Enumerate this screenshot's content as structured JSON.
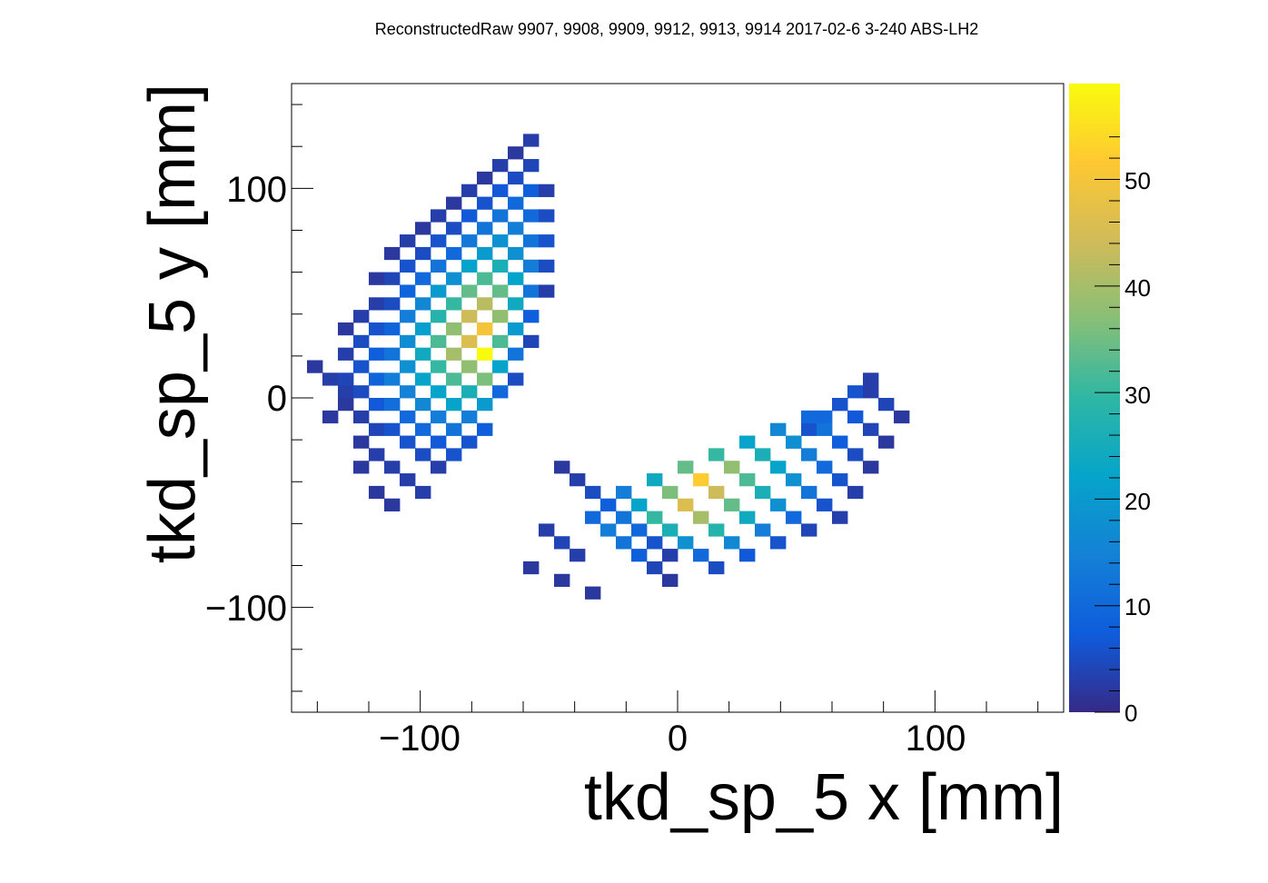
{
  "chart_data": {
    "type": "heatmap",
    "title": "ReconstructedRaw 9907, 9908, 9909, 9912, 9913, 9914 2017-02-6 3-240 ABS-LH2",
    "xlabel": "tkd_sp_5 x [mm]",
    "ylabel": "tkd_sp_5 y [mm]",
    "xlim": [
      -150,
      150
    ],
    "ylim": [
      -150,
      150
    ],
    "zlim": [
      0,
      59
    ],
    "bin_width": 6,
    "x_ticks": [
      -100,
      0,
      100
    ],
    "y_ticks": [
      -100,
      0,
      100
    ],
    "x_tick_labels": [
      "−100",
      "0",
      "100"
    ],
    "y_tick_labels": [
      "−100",
      "0",
      "100"
    ],
    "colorbar_ticks": [
      0,
      10,
      20,
      30,
      40,
      50
    ],
    "colorbar_tick_labels": [
      "0",
      "10",
      "20",
      "30",
      "40",
      "50"
    ],
    "colormap": "parula",
    "colormap_stops": [
      "#352a87",
      "#0f5cdd",
      "#1481d6",
      "#06a4ca",
      "#2eb7a4",
      "#87bf77",
      "#d1bb59",
      "#fec832",
      "#f9fb0e"
    ],
    "grid": false,
    "bins": [
      [
        -141,
        15,
        2
      ],
      [
        -135,
        9,
        3
      ],
      [
        -135,
        -9,
        2
      ],
      [
        -129,
        33,
        2
      ],
      [
        -129,
        21,
        3
      ],
      [
        -129,
        9,
        4
      ],
      [
        -129,
        3,
        3
      ],
      [
        -129,
        -3,
        2
      ],
      [
        -123,
        39,
        3
      ],
      [
        -123,
        27,
        5
      ],
      [
        -123,
        15,
        6
      ],
      [
        -123,
        3,
        5
      ],
      [
        -123,
        -9,
        3
      ],
      [
        -123,
        -21,
        2
      ],
      [
        -123,
        -33,
        2
      ],
      [
        -117,
        57,
        2
      ],
      [
        -117,
        45,
        3
      ],
      [
        -117,
        33,
        6
      ],
      [
        -117,
        21,
        8
      ],
      [
        -117,
        9,
        9
      ],
      [
        -117,
        -3,
        7
      ],
      [
        -117,
        -15,
        4
      ],
      [
        -117,
        -27,
        3
      ],
      [
        -117,
        -45,
        2
      ],
      [
        -111,
        69,
        2
      ],
      [
        -111,
        57,
        4
      ],
      [
        -111,
        45,
        5
      ],
      [
        -111,
        33,
        9
      ],
      [
        -111,
        21,
        12
      ],
      [
        -111,
        9,
        14
      ],
      [
        -111,
        -3,
        11
      ],
      [
        -111,
        -15,
        6
      ],
      [
        -111,
        -33,
        3
      ],
      [
        -111,
        -51,
        2
      ],
      [
        -105,
        75,
        3
      ],
      [
        -105,
        63,
        6
      ],
      [
        -105,
        51,
        9
      ],
      [
        -105,
        39,
        14
      ],
      [
        -105,
        27,
        17
      ],
      [
        -105,
        15,
        18
      ],
      [
        -105,
        3,
        15
      ],
      [
        -105,
        -9,
        10
      ],
      [
        -105,
        -21,
        6
      ],
      [
        -105,
        -39,
        3
      ],
      [
        -99,
        81,
        2
      ],
      [
        -99,
        69,
        5
      ],
      [
        -99,
        57,
        10
      ],
      [
        -99,
        45,
        16
      ],
      [
        -99,
        33,
        21
      ],
      [
        -99,
        21,
        24
      ],
      [
        -99,
        9,
        22
      ],
      [
        -99,
        -3,
        16
      ],
      [
        -99,
        -15,
        10
      ],
      [
        -99,
        -27,
        5
      ],
      [
        -99,
        -45,
        3
      ],
      [
        -93,
        87,
        3
      ],
      [
        -93,
        75,
        6
      ],
      [
        -93,
        63,
        12
      ],
      [
        -93,
        51,
        20
      ],
      [
        -93,
        39,
        28
      ],
      [
        -93,
        27,
        32
      ],
      [
        -93,
        15,
        30
      ],
      [
        -93,
        3,
        22
      ],
      [
        -93,
        -9,
        14
      ],
      [
        -93,
        -21,
        7
      ],
      [
        -93,
        -33,
        3
      ],
      [
        -87,
        93,
        2
      ],
      [
        -87,
        81,
        5
      ],
      [
        -87,
        69,
        10
      ],
      [
        -87,
        57,
        18
      ],
      [
        -87,
        45,
        30
      ],
      [
        -87,
        33,
        38
      ],
      [
        -87,
        21,
        40
      ],
      [
        -87,
        9,
        32
      ],
      [
        -87,
        -3,
        22
      ],
      [
        -87,
        -15,
        12
      ],
      [
        -87,
        -27,
        6
      ],
      [
        -81,
        99,
        3
      ],
      [
        -81,
        87,
        7
      ],
      [
        -81,
        75,
        13
      ],
      [
        -81,
        63,
        22
      ],
      [
        -81,
        51,
        34
      ],
      [
        -81,
        39,
        44
      ],
      [
        -81,
        27,
        46
      ],
      [
        -81,
        15,
        38
      ],
      [
        -81,
        3,
        26
      ],
      [
        -81,
        -9,
        14
      ],
      [
        -81,
        -21,
        6
      ],
      [
        -75,
        105,
        2
      ],
      [
        -75,
        93,
        6
      ],
      [
        -75,
        81,
        12
      ],
      [
        -75,
        69,
        20
      ],
      [
        -75,
        57,
        32
      ],
      [
        -75,
        45,
        42
      ],
      [
        -75,
        33,
        50
      ],
      [
        -75,
        21,
        59
      ],
      [
        -75,
        9,
        36
      ],
      [
        -75,
        -3,
        20
      ],
      [
        -75,
        -15,
        8
      ],
      [
        -69,
        111,
        3
      ],
      [
        -69,
        99,
        7
      ],
      [
        -69,
        87,
        12
      ],
      [
        -69,
        75,
        18
      ],
      [
        -69,
        63,
        26
      ],
      [
        -69,
        51,
        34
      ],
      [
        -69,
        39,
        38
      ],
      [
        -69,
        27,
        32
      ],
      [
        -69,
        15,
        22
      ],
      [
        -69,
        3,
        10
      ],
      [
        -63,
        117,
        2
      ],
      [
        -63,
        105,
        5
      ],
      [
        -63,
        93,
        10
      ],
      [
        -63,
        81,
        14
      ],
      [
        -63,
        69,
        18
      ],
      [
        -63,
        57,
        22
      ],
      [
        -63,
        45,
        24
      ],
      [
        -63,
        33,
        20
      ],
      [
        -63,
        21,
        12
      ],
      [
        -63,
        9,
        5
      ],
      [
        -57,
        123,
        3
      ],
      [
        -57,
        111,
        4
      ],
      [
        -57,
        99,
        8
      ],
      [
        -57,
        87,
        10
      ],
      [
        -57,
        75,
        12
      ],
      [
        -57,
        63,
        14
      ],
      [
        -57,
        51,
        12
      ],
      [
        -57,
        39,
        8
      ],
      [
        -57,
        27,
        4
      ],
      [
        -51,
        99,
        3
      ],
      [
        -51,
        87,
        5
      ],
      [
        -51,
        75,
        6
      ],
      [
        -51,
        63,
        5
      ],
      [
        -51,
        51,
        3
      ],
      [
        45,
        -21,
        4
      ],
      [
        51,
        -15,
        6
      ],
      [
        57,
        -9,
        10
      ],
      [
        63,
        -3,
        8
      ],
      [
        69,
        3,
        6
      ],
      [
        75,
        9,
        3
      ],
      [
        -45,
        -33,
        2
      ],
      [
        -39,
        -39,
        3
      ],
      [
        -33,
        -45,
        5
      ],
      [
        -27,
        -51,
        8
      ],
      [
        -21,
        -57,
        12
      ],
      [
        -15,
        -63,
        10
      ],
      [
        -9,
        -69,
        6
      ],
      [
        -3,
        -75,
        3
      ],
      [
        -33,
        -57,
        10
      ],
      [
        -27,
        -63,
        14
      ],
      [
        -21,
        -69,
        12
      ],
      [
        -15,
        -75,
        8
      ],
      [
        -9,
        -81,
        4
      ],
      [
        -3,
        -87,
        2
      ],
      [
        -21,
        -45,
        14
      ],
      [
        -15,
        -51,
        22
      ],
      [
        -9,
        -57,
        30
      ],
      [
        -3,
        -63,
        26
      ],
      [
        3,
        -69,
        18
      ],
      [
        9,
        -75,
        10
      ],
      [
        15,
        -81,
        5
      ],
      [
        -9,
        -39,
        24
      ],
      [
        -3,
        -45,
        36
      ],
      [
        3,
        -51,
        46
      ],
      [
        9,
        -57,
        40
      ],
      [
        15,
        -63,
        28
      ],
      [
        21,
        -69,
        16
      ],
      [
        27,
        -75,
        7
      ],
      [
        3,
        -33,
        34
      ],
      [
        9,
        -39,
        52
      ],
      [
        15,
        -45,
        44
      ],
      [
        21,
        -51,
        34
      ],
      [
        27,
        -57,
        24
      ],
      [
        33,
        -63,
        14
      ],
      [
        39,
        -69,
        6
      ],
      [
        15,
        -27,
        30
      ],
      [
        21,
        -33,
        38
      ],
      [
        27,
        -39,
        32
      ],
      [
        33,
        -45,
        26
      ],
      [
        39,
        -51,
        18
      ],
      [
        45,
        -57,
        10
      ],
      [
        51,
        -63,
        4
      ],
      [
        27,
        -21,
        22
      ],
      [
        33,
        -27,
        26
      ],
      [
        39,
        -33,
        22
      ],
      [
        45,
        -39,
        18
      ],
      [
        51,
        -45,
        12
      ],
      [
        57,
        -51,
        6
      ],
      [
        63,
        -57,
        3
      ],
      [
        39,
        -15,
        16
      ],
      [
        45,
        -21,
        18
      ],
      [
        51,
        -27,
        14
      ],
      [
        57,
        -33,
        10
      ],
      [
        63,
        -39,
        6
      ],
      [
        69,
        -45,
        3
      ],
      [
        51,
        -9,
        10
      ],
      [
        57,
        -15,
        12
      ],
      [
        63,
        -21,
        8
      ],
      [
        69,
        -27,
        5
      ],
      [
        75,
        -33,
        2
      ],
      [
        63,
        -3,
        6
      ],
      [
        69,
        -9,
        7
      ],
      [
        75,
        -15,
        4
      ],
      [
        81,
        -21,
        2
      ],
      [
        75,
        3,
        3
      ],
      [
        81,
        -3,
        4
      ],
      [
        87,
        -9,
        2
      ],
      [
        -51,
        -63,
        3
      ],
      [
        -45,
        -69,
        4
      ],
      [
        -39,
        -75,
        3
      ],
      [
        -57,
        -81,
        2
      ],
      [
        -45,
        -87,
        2
      ],
      [
        -33,
        -93,
        2
      ]
    ]
  }
}
